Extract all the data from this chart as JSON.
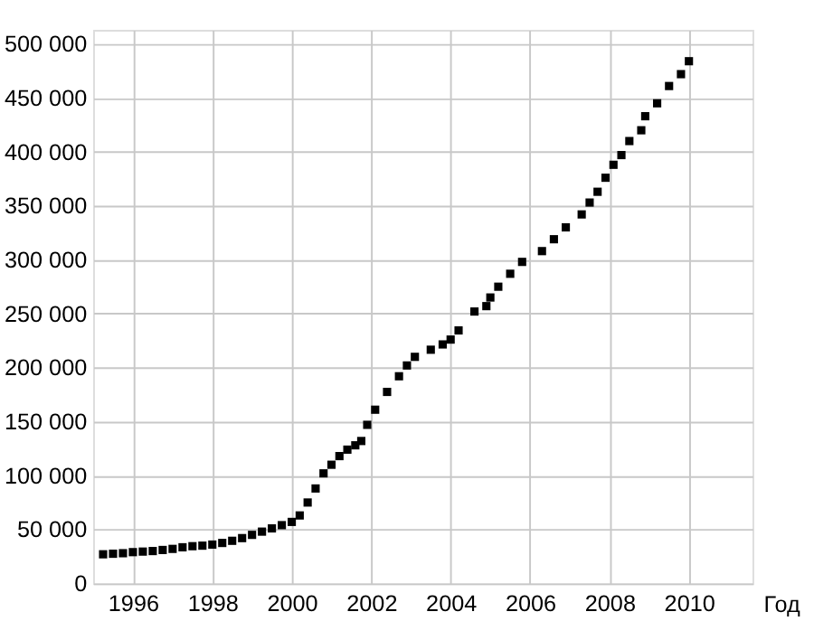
{
  "chart_data": {
    "type": "scatter",
    "xlabel": "Год",
    "x": [
      1995.25,
      1995.5,
      1995.75,
      1996,
      1996.25,
      1996.5,
      1996.75,
      1997,
      1997.25,
      1997.5,
      1997.75,
      1998,
      1998.25,
      1998.5,
      1998.75,
      1999,
      1999.25,
      1999.5,
      1999.75,
      2000,
      2000.2,
      2000.4,
      2000.6,
      2000.8,
      2001,
      2001.2,
      2001.4,
      2001.6,
      2001.75,
      2001.9,
      2002.1,
      2002.4,
      2002.7,
      2002.9,
      2003.1,
      2003.5,
      2003.8,
      2004,
      2004.2,
      2004.6,
      2004.9,
      2005,
      2005.2,
      2005.5,
      2005.8,
      2006.3,
      2006.6,
      2006.9,
      2007.3,
      2007.5,
      2007.7,
      2007.9,
      2008.1,
      2008.3,
      2008.5,
      2008.8,
      2008.9,
      2009.2,
      2009.5,
      2009.8,
      2010
    ],
    "series": [
      {
        "color": "#000000",
        "values": [
          27000,
          27500,
          28000,
          29000,
          29500,
          30000,
          31000,
          32000,
          33500,
          34500,
          35000,
          36000,
          37500,
          39500,
          42000,
          45000,
          48000,
          51000,
          54000,
          57000,
          63000,
          75000,
          88000,
          102000,
          110000,
          118000,
          124000,
          128000,
          132000,
          147000,
          161000,
          177500,
          192000,
          202000,
          210000,
          216600,
          221500,
          226000,
          234500,
          252000,
          257000,
          265000,
          275000,
          287000,
          298000,
          308000,
          319000,
          330000,
          342000,
          353000,
          363000,
          376000,
          388000,
          397000,
          410000,
          420000,
          433000,
          445000,
          461000,
          472000,
          484000
        ]
      }
    ],
    "xlim": [
      1995,
      2011.6
    ],
    "ylim": [
      0,
      513000
    ],
    "xticks": [
      1996,
      1998,
      2000,
      2002,
      2004,
      2006,
      2008,
      2010
    ],
    "yticks": [
      0,
      {
        "value": 50000,
        "label": "50 000"
      },
      {
        "value": 100000,
        "label": "100 000"
      },
      {
        "value": 150000,
        "label": "150 000"
      },
      {
        "value": 200000,
        "label": "200 000"
      },
      {
        "value": 250000,
        "label": "250 000"
      },
      {
        "value": 300000,
        "label": "300 000"
      },
      {
        "value": 350000,
        "label": "350 000"
      },
      {
        "value": 400000,
        "label": "400 000"
      },
      {
        "value": 450000,
        "label": "450 000"
      },
      {
        "value": 500000,
        "label": "500 000"
      }
    ],
    "grid": true,
    "marker": "square"
  }
}
